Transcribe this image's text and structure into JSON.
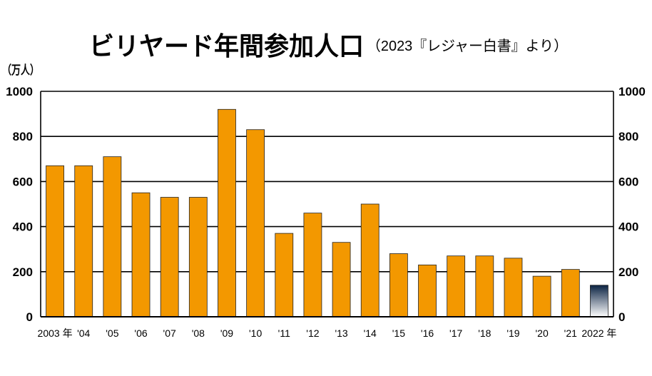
{
  "chart_data": {
    "type": "bar",
    "title": "ビリヤード年間参加人口",
    "subtitle": "（2023『レジャー白書』より）",
    "xlabel": "",
    "ylabel": "（万人）",
    "categories": [
      "2003 年",
      "'04",
      "'05",
      "'06",
      "'07",
      "'08",
      "'09",
      "'10",
      "'11",
      "'12",
      "'13",
      "'14",
      "'15",
      "'16",
      "'17",
      "'18",
      "'19",
      "'20",
      "'21",
      "2022 年"
    ],
    "values": [
      670,
      670,
      710,
      550,
      530,
      530,
      920,
      830,
      370,
      460,
      330,
      500,
      280,
      230,
      270,
      270,
      260,
      180,
      210,
      140
    ],
    "ylim": [
      0,
      1000
    ],
    "yticks": [
      0,
      200,
      400,
      600,
      800,
      1000
    ],
    "grid": true,
    "y_axis_both_sides": true,
    "highlight_last": true,
    "colors": {
      "bar": "#F39800",
      "bar_outline": "#222222",
      "latest_top": "#0B2343",
      "latest_bottom": "#FFFFFF",
      "axis": "#000000"
    }
  }
}
